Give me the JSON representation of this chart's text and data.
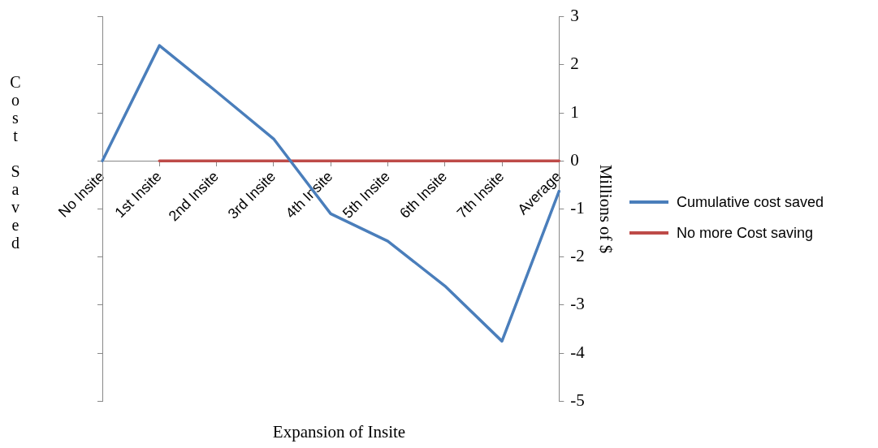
{
  "chart_data": {
    "type": "line",
    "xlabel": "Expansion of Insite",
    "ylabel": "Millions of $",
    "y2label": "Cost Saved",
    "categories": [
      "No Insite",
      "1st Insite",
      "2nd Insite",
      "3rd Insite",
      "4th Insite",
      "5th Insite",
      "6th Insite",
      "7th Insite",
      "Average"
    ],
    "series": [
      {
        "name": "Cumulative cost saved",
        "color": "#4a7ebb",
        "values": [
          0,
          2.4,
          1.44,
          0.46,
          -1.1,
          -1.67,
          -2.6,
          -3.75,
          -0.63
        ]
      },
      {
        "name": "No more Cost saving",
        "color": "#be4b48",
        "values": [
          null,
          0,
          0,
          0,
          0,
          0,
          0,
          0,
          0
        ]
      }
    ],
    "ylim": [
      -5,
      3
    ],
    "yticks": [
      3,
      2,
      1,
      0,
      -1,
      -2,
      -3,
      -4,
      -5
    ],
    "legend": "right",
    "marker": "none",
    "line_style": "solid",
    "grid": false
  }
}
